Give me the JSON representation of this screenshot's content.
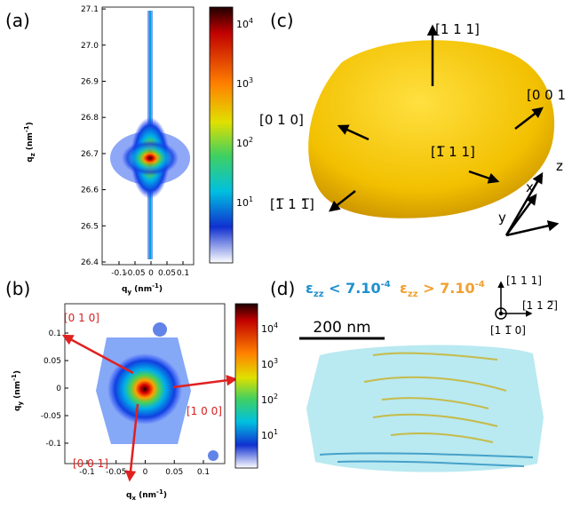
{
  "panel_a": {
    "label": "(a)",
    "x_ticks": [
      "-0.1",
      "-0.05",
      "0",
      "0.05",
      "0.1"
    ],
    "y_ticks": [
      "26.4",
      "26.5",
      "26.6",
      "26.7",
      "26.8",
      "26.9",
      "27.0",
      "27.1"
    ],
    "x_label": {
      "base": "q",
      "sub": "y",
      "unit": "(nm",
      "sup": "-1",
      "close": ")"
    },
    "y_label": {
      "base": "q",
      "sub": "z",
      "unit": "(nm",
      "sup": "-1",
      "close": ")"
    },
    "colorbar_ticks": [
      {
        "base": "10",
        "exp": "4"
      },
      {
        "base": "10",
        "exp": "3"
      },
      {
        "base": "10",
        "exp": "2"
      },
      {
        "base": "10",
        "exp": "1"
      }
    ]
  },
  "panel_b": {
    "label": "(b)",
    "x_ticks": [
      "-0.1",
      "-0.05",
      "0",
      "0.05",
      "0.1"
    ],
    "y_ticks": [
      "0.1",
      "0.05",
      "0",
      "-0.05",
      "-0.1"
    ],
    "x_label": {
      "base": "q",
      "sub": "x",
      "unit": "(nm",
      "sup": "-1",
      "close": ")"
    },
    "y_label": {
      "base": "q",
      "sub": "y",
      "unit": "(nm",
      "sup": "-1",
      "close": ")"
    },
    "colorbar_ticks": [
      {
        "base": "10",
        "exp": "4"
      },
      {
        "base": "10",
        "exp": "3"
      },
      {
        "base": "10",
        "exp": "2"
      },
      {
        "base": "10",
        "exp": "1"
      }
    ],
    "directions": [
      "[0 1 0]",
      "[1 0 0]",
      "[0 0 1]"
    ]
  },
  "panel_c": {
    "label": "(c)",
    "directions": [
      "[1 1 1]",
      "[0 0 1",
      "[0 1 0]",
      "[1̅ 1 1]",
      "[1̅ 1 1̅]"
    ],
    "axes": [
      "z",
      "x",
      "y"
    ]
  },
  "panel_d": {
    "label": "(d)",
    "legend": [
      {
        "symbol": "ε",
        "sub": "zz",
        "text": " < 7.10",
        "sup": "-4"
      },
      {
        "symbol": "ε",
        "sub": "zz",
        "text": " > 7.10",
        "sup": "-4"
      }
    ],
    "scale_bar": "200 nm",
    "directions": [
      "[1 1 1]",
      "[1 1 2̅]",
      "[1 1̅ 0]"
    ]
  }
}
